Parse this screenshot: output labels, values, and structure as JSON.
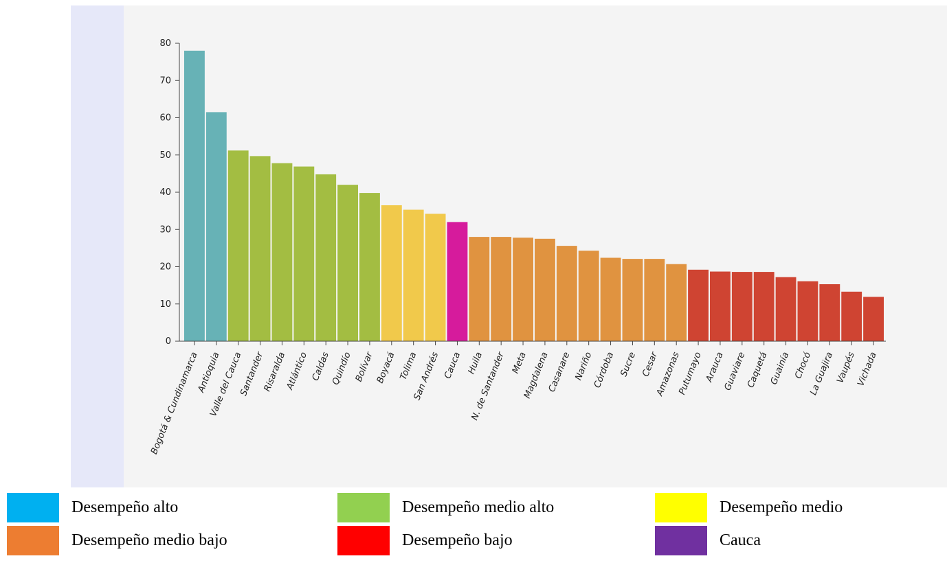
{
  "chart_data": {
    "type": "bar",
    "categories": [
      "Bogotá & Cundinamarca",
      "Antioquia",
      "Valle del Cauca",
      "Santander",
      "Risaralda",
      "Atlántico",
      "Caldas",
      "Quindío",
      "Bolívar",
      "Boyacá",
      "Tolima",
      "San Andrés",
      "Cauca",
      "Huila",
      "N. de Santander",
      "Meta",
      "Magdalena",
      "Casanare",
      "Nariño",
      "Córdoba",
      "Sucre",
      "Cesar",
      "Amazonas",
      "Putumayo",
      "Arauca",
      "Guaviare",
      "Caquetá",
      "Guainía",
      "Chocó",
      "La Guajira",
      "Vaupés",
      "Vichada"
    ],
    "values": [
      78,
      61.5,
      51.2,
      49.7,
      47.8,
      46.9,
      44.8,
      42,
      39.8,
      36.5,
      35.3,
      34.2,
      32,
      28,
      28,
      27.8,
      27.5,
      25.6,
      24.3,
      22.4,
      22.1,
      22.1,
      20.7,
      19.2,
      18.7,
      18.6,
      18.6,
      17.2,
      16.1,
      15.3,
      13.3,
      11.9
    ],
    "groups": [
      "alto",
      "alto",
      "medio_alto",
      "medio_alto",
      "medio_alto",
      "medio_alto",
      "medio_alto",
      "medio_alto",
      "medio_alto",
      "medio",
      "medio",
      "medio",
      "cauca",
      "medio_bajo",
      "medio_bajo",
      "medio_bajo",
      "medio_bajo",
      "medio_bajo",
      "medio_bajo",
      "medio_bajo",
      "medio_bajo",
      "medio_bajo",
      "medio_bajo",
      "bajo",
      "bajo",
      "bajo",
      "bajo",
      "bajo",
      "bajo",
      "bajo",
      "bajo",
      "bajo"
    ],
    "group_colors": {
      "alto": "#67b2b6",
      "medio_alto": "#a3bd42",
      "medio": "#f1c94b",
      "cauca": "#d61b9c",
      "medio_bajo": "#e09340",
      "bajo": "#cf4432"
    },
    "ylim": [
      0,
      80
    ],
    "yticks": [
      0,
      10,
      20,
      30,
      40,
      50,
      60,
      70,
      80
    ],
    "title": "",
    "xlabel": "",
    "ylabel": ""
  },
  "legend": [
    {
      "label": "Desempeño alto",
      "color": "#00b0f0"
    },
    {
      "label": "Desempeño medio alto",
      "color": "#92d050"
    },
    {
      "label": "Desempeño medio",
      "color": "#ffff00"
    },
    {
      "label": "Desempeño medio bajo",
      "color": "#ed7d31"
    },
    {
      "label": "Desempeño bajo",
      "color": "#ff0000"
    },
    {
      "label": "Cauca",
      "color": "#7030a0"
    }
  ]
}
